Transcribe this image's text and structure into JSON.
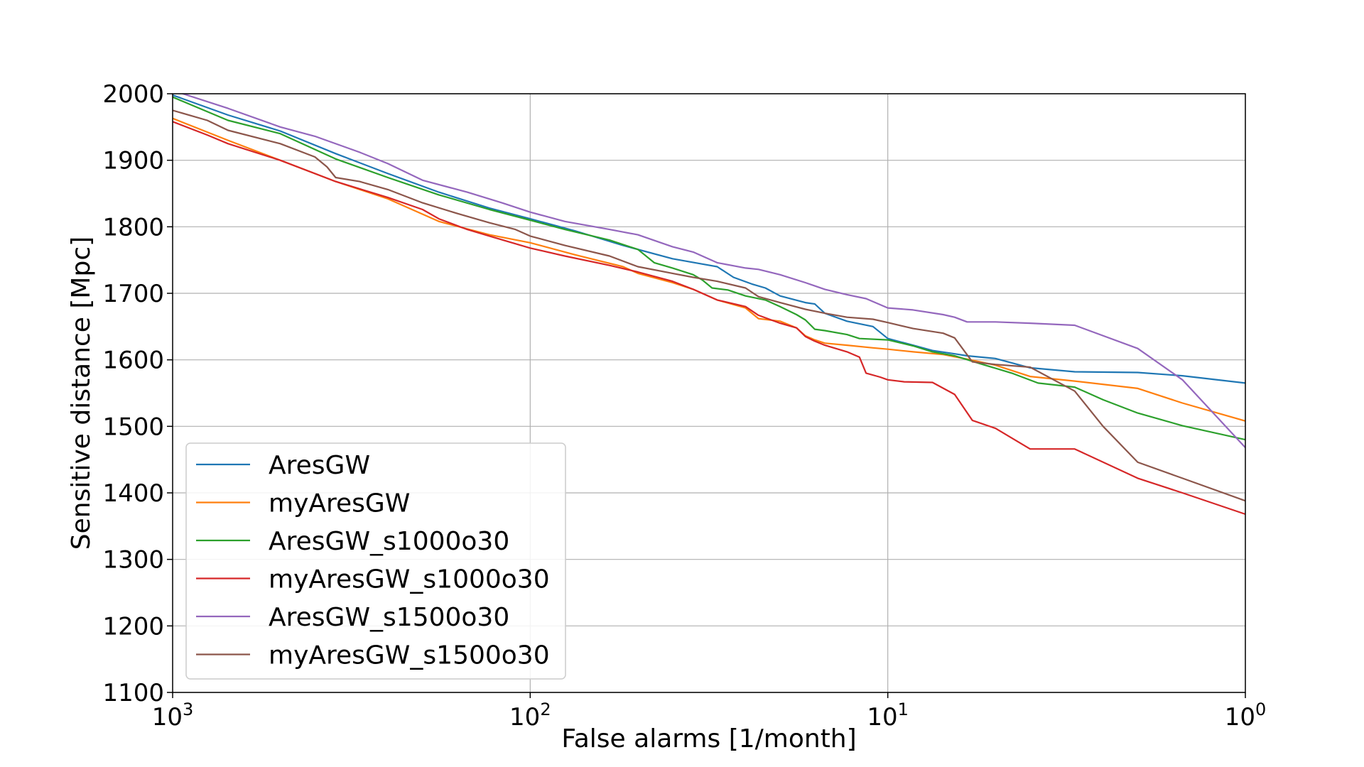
{
  "chart_data": {
    "type": "line",
    "title": "",
    "xlabel": "False alarms [1/month]",
    "ylabel": "Sensitive distance [Mpc]",
    "xscale": "log",
    "x_reversed": true,
    "xlim": [
      1000,
      1
    ],
    "ylim": [
      1100,
      2000
    ],
    "x_ticks": [
      {
        "value": 1000,
        "base": "10",
        "exp": "3"
      },
      {
        "value": 100,
        "base": "10",
        "exp": "2"
      },
      {
        "value": 10,
        "base": "10",
        "exp": "1"
      },
      {
        "value": 1,
        "base": "10",
        "exp": "0"
      }
    ],
    "y_ticks": [
      1100,
      1200,
      1300,
      1400,
      1500,
      1600,
      1700,
      1800,
      1900,
      2000
    ],
    "grid": true,
    "legend_position": "bottom-left",
    "series": [
      {
        "name": "AresGW",
        "color": "#1f77b4",
        "points": [
          [
            1000,
            1998
          ],
          [
            700,
            1968
          ],
          [
            500,
            1944
          ],
          [
            350,
            1910
          ],
          [
            250,
            1880
          ],
          [
            180,
            1852
          ],
          [
            130,
            1828
          ],
          [
            100,
            1812
          ],
          [
            75,
            1794
          ],
          [
            55,
            1772
          ],
          [
            40,
            1752
          ],
          [
            33,
            1744
          ],
          [
            30,
            1740
          ],
          [
            27,
            1724
          ],
          [
            24,
            1714
          ],
          [
            22,
            1708
          ],
          [
            20,
            1696
          ],
          [
            17,
            1686
          ],
          [
            16,
            1684
          ],
          [
            15,
            1670
          ],
          [
            13,
            1658
          ],
          [
            11,
            1650
          ],
          [
            10,
            1632
          ],
          [
            8.5,
            1622
          ],
          [
            7.5,
            1614
          ],
          [
            6.5,
            1609
          ],
          [
            6,
            1606
          ],
          [
            5,
            1602
          ],
          [
            4,
            1588
          ],
          [
            3,
            1582
          ],
          [
            2,
            1581
          ],
          [
            1.5,
            1576
          ],
          [
            1,
            1565
          ]
        ]
      },
      {
        "name": "myAresGW",
        "color": "#ff7f0e",
        "points": [
          [
            1000,
            1963
          ],
          [
            700,
            1930
          ],
          [
            500,
            1900
          ],
          [
            350,
            1868
          ],
          [
            250,
            1842
          ],
          [
            180,
            1808
          ],
          [
            130,
            1788
          ],
          [
            100,
            1776
          ],
          [
            75,
            1758
          ],
          [
            55,
            1740
          ],
          [
            50,
            1730
          ],
          [
            40,
            1716
          ],
          [
            35,
            1706
          ],
          [
            30,
            1690
          ],
          [
            25,
            1678
          ],
          [
            23,
            1662
          ],
          [
            20,
            1658
          ],
          [
            18,
            1648
          ],
          [
            17,
            1636
          ],
          [
            16,
            1630
          ],
          [
            15,
            1625
          ],
          [
            13,
            1622
          ],
          [
            11,
            1618
          ],
          [
            10,
            1616
          ],
          [
            8.5,
            1612
          ],
          [
            7,
            1608
          ],
          [
            6,
            1601
          ],
          [
            5,
            1592
          ],
          [
            4,
            1575
          ],
          [
            3,
            1568
          ],
          [
            2,
            1557
          ],
          [
            1.5,
            1535
          ],
          [
            1,
            1508
          ]
        ]
      },
      {
        "name": "AresGW_s1000o30",
        "color": "#2ca02c",
        "points": [
          [
            1000,
            1995
          ],
          [
            700,
            1960
          ],
          [
            500,
            1940
          ],
          [
            350,
            1902
          ],
          [
            250,
            1874
          ],
          [
            180,
            1848
          ],
          [
            130,
            1826
          ],
          [
            100,
            1810
          ],
          [
            80,
            1796
          ],
          [
            60,
            1780
          ],
          [
            50,
            1766
          ],
          [
            45,
            1746
          ],
          [
            40,
            1738
          ],
          [
            35,
            1728
          ],
          [
            33,
            1720
          ],
          [
            31,
            1708
          ],
          [
            28,
            1705
          ],
          [
            25,
            1696
          ],
          [
            22,
            1690
          ],
          [
            20,
            1680
          ],
          [
            18,
            1668
          ],
          [
            17,
            1660
          ],
          [
            16,
            1646
          ],
          [
            15,
            1644
          ],
          [
            13,
            1638
          ],
          [
            12,
            1632
          ],
          [
            10,
            1630
          ],
          [
            8.5,
            1621
          ],
          [
            7.5,
            1612
          ],
          [
            6.5,
            1606
          ],
          [
            5.5,
            1594
          ],
          [
            4.5,
            1580
          ],
          [
            3.8,
            1565
          ],
          [
            3,
            1559
          ],
          [
            2.5,
            1540
          ],
          [
            2,
            1520
          ],
          [
            1.5,
            1501
          ],
          [
            1,
            1480
          ]
        ]
      },
      {
        "name": "myAresGW_s1000o30",
        "color": "#d62728",
        "points": [
          [
            1000,
            1958
          ],
          [
            800,
            1938
          ],
          [
            700,
            1925
          ],
          [
            500,
            1900
          ],
          [
            400,
            1880
          ],
          [
            350,
            1868
          ],
          [
            250,
            1844
          ],
          [
            200,
            1826
          ],
          [
            180,
            1812
          ],
          [
            150,
            1796
          ],
          [
            130,
            1786
          ],
          [
            100,
            1768
          ],
          [
            80,
            1756
          ],
          [
            60,
            1742
          ],
          [
            50,
            1732
          ],
          [
            40,
            1718
          ],
          [
            35,
            1706
          ],
          [
            30,
            1690
          ],
          [
            25,
            1680
          ],
          [
            23,
            1667
          ],
          [
            20,
            1655
          ],
          [
            18,
            1648
          ],
          [
            17,
            1635
          ],
          [
            16,
            1628
          ],
          [
            15,
            1622
          ],
          [
            13,
            1612
          ],
          [
            12,
            1604
          ],
          [
            11.5,
            1580
          ],
          [
            10.5,
            1574
          ],
          [
            10,
            1570
          ],
          [
            9,
            1567
          ],
          [
            7.5,
            1566
          ],
          [
            6.5,
            1548
          ],
          [
            5.8,
            1509
          ],
          [
            5,
            1497
          ],
          [
            4,
            1466
          ],
          [
            3,
            1466
          ],
          [
            2,
            1422
          ],
          [
            1.5,
            1400
          ],
          [
            1,
            1368
          ]
        ]
      },
      {
        "name": "AresGW_s1500o30",
        "color": "#9467bd",
        "points": [
          [
            1000,
            2005
          ],
          [
            700,
            1978
          ],
          [
            500,
            1950
          ],
          [
            400,
            1936
          ],
          [
            300,
            1912
          ],
          [
            250,
            1895
          ],
          [
            200,
            1870
          ],
          [
            150,
            1852
          ],
          [
            120,
            1836
          ],
          [
            100,
            1822
          ],
          [
            80,
            1808
          ],
          [
            60,
            1796
          ],
          [
            50,
            1788
          ],
          [
            40,
            1770
          ],
          [
            35,
            1762
          ],
          [
            30,
            1746
          ],
          [
            25,
            1738
          ],
          [
            23,
            1736
          ],
          [
            20,
            1728
          ],
          [
            17,
            1716
          ],
          [
            15,
            1706
          ],
          [
            13,
            1698
          ],
          [
            11.5,
            1692
          ],
          [
            10,
            1678
          ],
          [
            8.5,
            1675
          ],
          [
            7,
            1668
          ],
          [
            6.5,
            1664
          ],
          [
            6,
            1657
          ],
          [
            5,
            1657
          ],
          [
            4,
            1655
          ],
          [
            3,
            1652
          ],
          [
            2,
            1617
          ],
          [
            1.5,
            1570
          ],
          [
            1,
            1468
          ]
        ]
      },
      {
        "name": "myAresGW_s1500o30",
        "color": "#8c564b",
        "points": [
          [
            1000,
            1975
          ],
          [
            800,
            1960
          ],
          [
            700,
            1945
          ],
          [
            500,
            1925
          ],
          [
            400,
            1905
          ],
          [
            370,
            1890
          ],
          [
            350,
            1874
          ],
          [
            300,
            1868
          ],
          [
            250,
            1856
          ],
          [
            200,
            1836
          ],
          [
            160,
            1820
          ],
          [
            130,
            1806
          ],
          [
            110,
            1796
          ],
          [
            100,
            1786
          ],
          [
            80,
            1772
          ],
          [
            60,
            1756
          ],
          [
            50,
            1740
          ],
          [
            40,
            1730
          ],
          [
            35,
            1724
          ],
          [
            30,
            1718
          ],
          [
            25,
            1708
          ],
          [
            23,
            1695
          ],
          [
            20,
            1686
          ],
          [
            17,
            1676
          ],
          [
            15,
            1670
          ],
          [
            13,
            1664
          ],
          [
            11,
            1661
          ],
          [
            10,
            1656
          ],
          [
            8.5,
            1647
          ],
          [
            7,
            1640
          ],
          [
            6.5,
            1633
          ],
          [
            5.8,
            1597
          ],
          [
            5,
            1593
          ],
          [
            4,
            1589
          ],
          [
            3,
            1553
          ],
          [
            2.5,
            1500
          ],
          [
            2,
            1446
          ],
          [
            1.5,
            1422
          ],
          [
            1,
            1388
          ]
        ]
      }
    ]
  }
}
